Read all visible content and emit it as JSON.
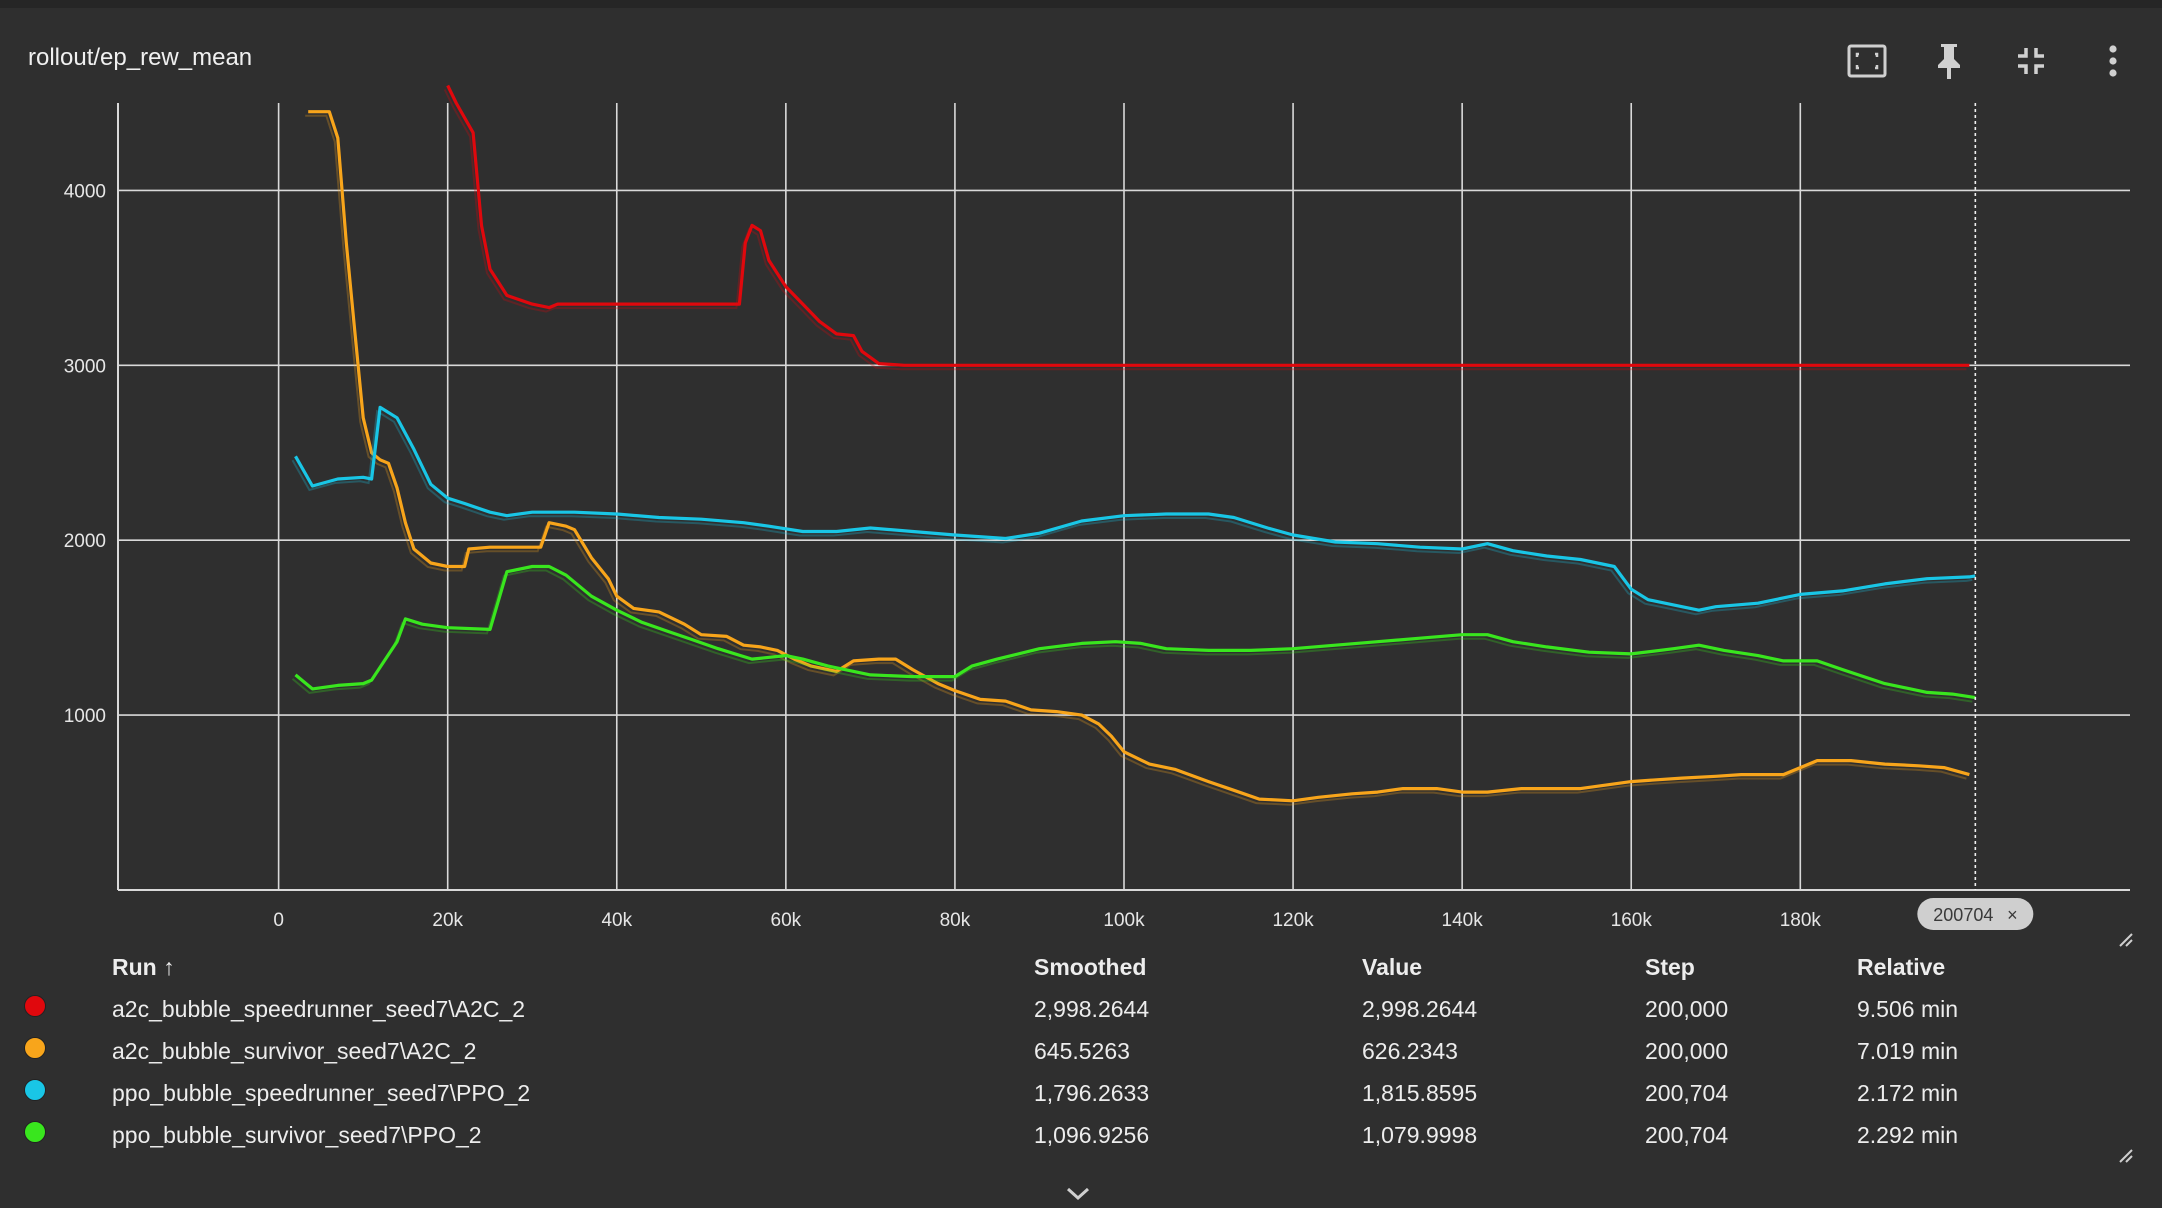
{
  "card": {
    "title": "rollout/ep_rew_mean",
    "tools": [
      "fit-domain-icon",
      "pin-icon",
      "collapse-icon",
      "more-vert-icon"
    ]
  },
  "chart_data": {
    "type": "line",
    "title": "rollout/ep_rew_mean",
    "xlim": [
      -19000,
      219000
    ],
    "ylim": [
      0,
      4500
    ],
    "x_ticks": [
      0,
      20000,
      40000,
      60000,
      80000,
      100000,
      120000,
      140000,
      160000,
      180000
    ],
    "x_tick_labels": [
      "0",
      "20k",
      "40k",
      "60k",
      "80k",
      "100k",
      "120k",
      "140k",
      "160k",
      "180k"
    ],
    "y_ticks": [
      1000,
      2000,
      3000,
      4000
    ],
    "y_tick_labels": [
      "1000",
      "2000",
      "3000",
      "4000"
    ],
    "grid": true,
    "hover_step": 200704,
    "hover_step_label": "200704",
    "series": [
      {
        "name": "a2c_bubble_speedrunner_seed7\\A2C_2",
        "color": "#e0080d",
        "points": [
          [
            20000,
            4600
          ],
          [
            21000,
            4500
          ],
          [
            23000,
            4330
          ],
          [
            24000,
            3800
          ],
          [
            25000,
            3550
          ],
          [
            27000,
            3400
          ],
          [
            30000,
            3350
          ],
          [
            32000,
            3330
          ],
          [
            33000,
            3350
          ],
          [
            40000,
            3350
          ],
          [
            50000,
            3350
          ],
          [
            54500,
            3350
          ],
          [
            55200,
            3700
          ],
          [
            56000,
            3800
          ],
          [
            57000,
            3770
          ],
          [
            58000,
            3600
          ],
          [
            60000,
            3450
          ],
          [
            62000,
            3350
          ],
          [
            64000,
            3250
          ],
          [
            66000,
            3180
          ],
          [
            68000,
            3170
          ],
          [
            69000,
            3080
          ],
          [
            71000,
            3010
          ],
          [
            74000,
            3000
          ],
          [
            100000,
            3000
          ],
          [
            150000,
            3000
          ],
          [
            200000,
            3000
          ]
        ]
      },
      {
        "name": "a2c_bubble_survivor_seed7\\A2C_2",
        "color": "#f8a51b",
        "points": [
          [
            3500,
            4450
          ],
          [
            6000,
            4450
          ],
          [
            7000,
            4300
          ],
          [
            8000,
            3700
          ],
          [
            9000,
            3200
          ],
          [
            10000,
            2700
          ],
          [
            11000,
            2500
          ],
          [
            12000,
            2460
          ],
          [
            13000,
            2440
          ],
          [
            14000,
            2300
          ],
          [
            15000,
            2100
          ],
          [
            16000,
            1950
          ],
          [
            18000,
            1870
          ],
          [
            20000,
            1850
          ],
          [
            22000,
            1850
          ],
          [
            22500,
            1950
          ],
          [
            25000,
            1960
          ],
          [
            31000,
            1960
          ],
          [
            32000,
            2100
          ],
          [
            34000,
            2080
          ],
          [
            35000,
            2060
          ],
          [
            37000,
            1900
          ],
          [
            39000,
            1780
          ],
          [
            40000,
            1680
          ],
          [
            42000,
            1610
          ],
          [
            45000,
            1590
          ],
          [
            48000,
            1520
          ],
          [
            50000,
            1460
          ],
          [
            53000,
            1450
          ],
          [
            55000,
            1400
          ],
          [
            57000,
            1390
          ],
          [
            59000,
            1370
          ],
          [
            61000,
            1320
          ],
          [
            63000,
            1280
          ],
          [
            66000,
            1250
          ],
          [
            68000,
            1310
          ],
          [
            71000,
            1320
          ],
          [
            73000,
            1320
          ],
          [
            75000,
            1260
          ],
          [
            78000,
            1180
          ],
          [
            80000,
            1140
          ],
          [
            83000,
            1090
          ],
          [
            86000,
            1080
          ],
          [
            89000,
            1030
          ],
          [
            92000,
            1020
          ],
          [
            95000,
            1000
          ],
          [
            97000,
            950
          ],
          [
            98500,
            880
          ],
          [
            100000,
            790
          ],
          [
            103000,
            720
          ],
          [
            106000,
            690
          ],
          [
            110000,
            620
          ],
          [
            113000,
            570
          ],
          [
            116000,
            520
          ],
          [
            120000,
            510
          ],
          [
            123000,
            530
          ],
          [
            127000,
            550
          ],
          [
            130000,
            560
          ],
          [
            133000,
            580
          ],
          [
            137000,
            580
          ],
          [
            140000,
            560
          ],
          [
            143000,
            560
          ],
          [
            147000,
            580
          ],
          [
            150000,
            580
          ],
          [
            154000,
            580
          ],
          [
            157000,
            600
          ],
          [
            160000,
            620
          ],
          [
            163000,
            630
          ],
          [
            166000,
            640
          ],
          [
            170000,
            650
          ],
          [
            173000,
            660
          ],
          [
            178000,
            660
          ],
          [
            180000,
            700
          ],
          [
            182000,
            740
          ],
          [
            186000,
            740
          ],
          [
            190000,
            720
          ],
          [
            194000,
            710
          ],
          [
            197000,
            700
          ],
          [
            200000,
            660
          ]
        ]
      },
      {
        "name": "ppo_bubble_speedrunner_seed7\\PPO_2",
        "color": "#19c6e6",
        "points": [
          [
            2000,
            2480
          ],
          [
            4000,
            2310
          ],
          [
            7000,
            2350
          ],
          [
            10000,
            2360
          ],
          [
            11000,
            2350
          ],
          [
            12000,
            2760
          ],
          [
            14000,
            2700
          ],
          [
            16000,
            2520
          ],
          [
            18000,
            2320
          ],
          [
            20000,
            2240
          ],
          [
            22000,
            2210
          ],
          [
            25000,
            2160
          ],
          [
            27000,
            2140
          ],
          [
            30000,
            2160
          ],
          [
            35000,
            2160
          ],
          [
            40000,
            2150
          ],
          [
            45000,
            2130
          ],
          [
            50000,
            2120
          ],
          [
            55000,
            2100
          ],
          [
            58000,
            2080
          ],
          [
            62000,
            2050
          ],
          [
            66000,
            2050
          ],
          [
            70000,
            2070
          ],
          [
            75000,
            2050
          ],
          [
            80000,
            2030
          ],
          [
            86000,
            2010
          ],
          [
            90000,
            2040
          ],
          [
            95000,
            2110
          ],
          [
            100000,
            2140
          ],
          [
            105000,
            2150
          ],
          [
            110000,
            2150
          ],
          [
            113000,
            2130
          ],
          [
            117000,
            2070
          ],
          [
            120000,
            2030
          ],
          [
            125000,
            1990
          ],
          [
            130000,
            1980
          ],
          [
            135000,
            1960
          ],
          [
            140000,
            1950
          ],
          [
            143000,
            1980
          ],
          [
            146000,
            1940
          ],
          [
            150000,
            1910
          ],
          [
            154000,
            1890
          ],
          [
            158000,
            1850
          ],
          [
            160000,
            1720
          ],
          [
            162000,
            1660
          ],
          [
            165000,
            1630
          ],
          [
            168000,
            1600
          ],
          [
            170000,
            1620
          ],
          [
            175000,
            1640
          ],
          [
            180000,
            1690
          ],
          [
            185000,
            1710
          ],
          [
            190000,
            1750
          ],
          [
            195000,
            1780
          ],
          [
            200000,
            1790
          ],
          [
            200704,
            1796
          ]
        ]
      },
      {
        "name": "ppo_bubble_survivor_seed7\\PPO_2",
        "color": "#39e61e",
        "points": [
          [
            2000,
            1230
          ],
          [
            4000,
            1150
          ],
          [
            7000,
            1170
          ],
          [
            10000,
            1180
          ],
          [
            11000,
            1200
          ],
          [
            14000,
            1420
          ],
          [
            15000,
            1550
          ],
          [
            17000,
            1520
          ],
          [
            20000,
            1500
          ],
          [
            25000,
            1490
          ],
          [
            27000,
            1820
          ],
          [
            30000,
            1850
          ],
          [
            32000,
            1850
          ],
          [
            34000,
            1800
          ],
          [
            37000,
            1680
          ],
          [
            40000,
            1600
          ],
          [
            43000,
            1530
          ],
          [
            46000,
            1480
          ],
          [
            49000,
            1430
          ],
          [
            52000,
            1380
          ],
          [
            56000,
            1320
          ],
          [
            60000,
            1340
          ],
          [
            62000,
            1320
          ],
          [
            65000,
            1280
          ],
          [
            70000,
            1230
          ],
          [
            75000,
            1220
          ],
          [
            80000,
            1220
          ],
          [
            82000,
            1280
          ],
          [
            85000,
            1320
          ],
          [
            90000,
            1380
          ],
          [
            95000,
            1410
          ],
          [
            99000,
            1420
          ],
          [
            102000,
            1410
          ],
          [
            105000,
            1380
          ],
          [
            110000,
            1370
          ],
          [
            115000,
            1370
          ],
          [
            120000,
            1380
          ],
          [
            125000,
            1400
          ],
          [
            130000,
            1420
          ],
          [
            135000,
            1440
          ],
          [
            140000,
            1460
          ],
          [
            143000,
            1460
          ],
          [
            146000,
            1420
          ],
          [
            150000,
            1390
          ],
          [
            155000,
            1360
          ],
          [
            160000,
            1350
          ],
          [
            165000,
            1380
          ],
          [
            168000,
            1400
          ],
          [
            171000,
            1370
          ],
          [
            175000,
            1340
          ],
          [
            178000,
            1310
          ],
          [
            182000,
            1310
          ],
          [
            185000,
            1260
          ],
          [
            190000,
            1180
          ],
          [
            195000,
            1130
          ],
          [
            198000,
            1120
          ],
          [
            200704,
            1100
          ]
        ]
      }
    ]
  },
  "table": {
    "headers": {
      "run": "Run ↑",
      "smoothed": "Smoothed",
      "value": "Value",
      "step": "Step",
      "relative": "Relative"
    },
    "rows": [
      {
        "color": "#e0080d",
        "run": "a2c_bubble_speedrunner_seed7\\A2C_2",
        "smoothed": "2,998.2644",
        "value": "2,998.2644",
        "step": "200,000",
        "relative": "9.506 min"
      },
      {
        "color": "#f8a51b",
        "run": "a2c_bubble_survivor_seed7\\A2C_2",
        "smoothed": "645.5263",
        "value": "626.2343",
        "step": "200,000",
        "relative": "7.019 min"
      },
      {
        "color": "#19c6e6",
        "run": "ppo_bubble_speedrunner_seed7\\PPO_2",
        "smoothed": "1,796.2633",
        "value": "1,815.8595",
        "step": "200,704",
        "relative": "2.172 min"
      },
      {
        "color": "#39e61e",
        "run": "ppo_bubble_survivor_seed7\\PPO_2",
        "smoothed": "1,096.9256",
        "value": "1,079.9998",
        "step": "200,704",
        "relative": "2.292 min"
      }
    ]
  }
}
